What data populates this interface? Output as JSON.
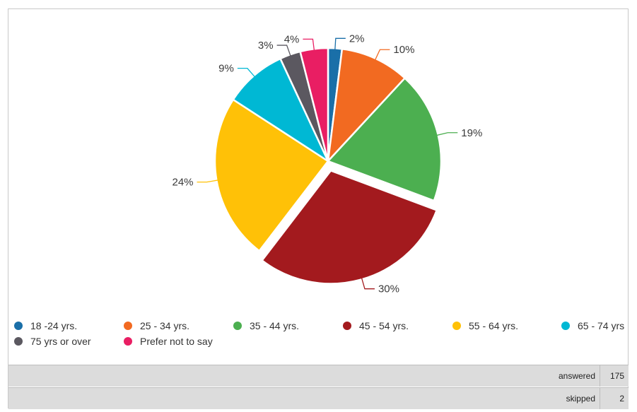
{
  "chart_data": {
    "type": "pie",
    "title": "",
    "categories": [
      "18 -24 yrs.",
      "25 - 34 yrs.",
      "35 - 44 yrs.",
      "45 - 54 yrs.",
      "55 - 64 yrs.",
      "65 - 74 yrs",
      "75 yrs or over",
      "Prefer not to say"
    ],
    "values": [
      2,
      10,
      19,
      30,
      24,
      9,
      3,
      4
    ],
    "labels": [
      "2%",
      "10%",
      "19%",
      "30%",
      "24%",
      "9%",
      "3%",
      "4%"
    ],
    "colors": [
      "#1a6fa8",
      "#f26a21",
      "#4caf50",
      "#a31a1e",
      "#ffc107",
      "#00b8d4",
      "#5b5860",
      "#e91e63"
    ],
    "exploded": "45 - 54 yrs.",
    "legend_position": "bottom"
  },
  "summary": {
    "answered_label": "answered",
    "answered_value": "175",
    "skipped_label": "skipped",
    "skipped_value": "2"
  }
}
